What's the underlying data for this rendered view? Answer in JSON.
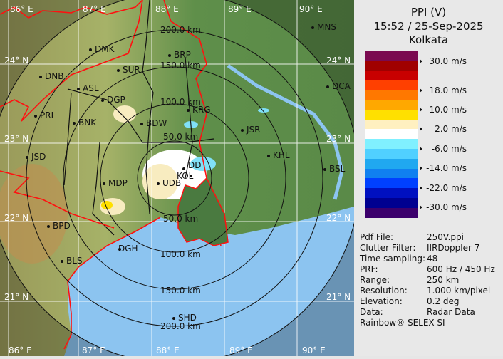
{
  "header": {
    "product": "PPI (V)",
    "datetime": "15:52 / 25-Sep-2025",
    "site": "Kolkata"
  },
  "legend": {
    "unit": "m/s",
    "bands": [
      "#7a0a50",
      "#a00000",
      "#c80000",
      "#ff4000",
      "#ff7800",
      "#ffa800",
      "#ffe000",
      "#fff0c0",
      "#ffffff",
      "#80f0ff",
      "#50d0ff",
      "#20a8f0",
      "#1080f0",
      "#0040ff",
      "#0010c0",
      "#000090",
      "#3c006c"
    ],
    "labels": [
      "30.0 m/s",
      "18.0 m/s",
      "10.0 m/s",
      "2.0 m/s",
      "-6.0 m/s",
      "-14.0 m/s",
      "-22.0 m/s",
      "-30.0 m/s"
    ]
  },
  "info": [
    {
      "key": "Pdf File:",
      "value": "250V.ppi"
    },
    {
      "key": "Clutter Filter:",
      "value": "IIRDoppler 7"
    },
    {
      "key": "Time sampling:",
      "value": "48"
    },
    {
      "key": "PRF:",
      "value": "600 Hz / 450 Hz"
    },
    {
      "key": "Range:",
      "value": "250 km"
    },
    {
      "key": "Resolution:",
      "value": "1.000 km/pixel"
    },
    {
      "key": "Elevation:",
      "value": "0.2 deg"
    },
    {
      "key": "Data:",
      "value": "Radar Data"
    }
  ],
  "credit": "Rainbow® SELEX-SI",
  "map": {
    "lon_labels": [
      "86° E",
      "87° E",
      "88° E",
      "89° E",
      "90° E"
    ],
    "lat_labels": [
      "24° N",
      "23° N",
      "22° N",
      "21° N"
    ],
    "range_labels": [
      "50.0 km",
      "100.0 km",
      "150.0 km",
      "200.0 km"
    ],
    "cities": [
      "DMK",
      "BRP",
      "SUR",
      "DNB",
      "ASL",
      "DGP",
      "PRL",
      "BNK",
      "BDW",
      "KRG",
      "JSR",
      "KHL",
      "BSL",
      "DCA",
      "MNS",
      "JSD",
      "MDP",
      "UDB",
      "DD",
      "KOL",
      "DGH",
      "BPD",
      "BLS",
      "SHD"
    ],
    "colors": {
      "land": "#5e8c4a",
      "sea": "#8cc4f0",
      "border": "#ff1010",
      "range_ring": "#111111",
      "grid": "#ffffff"
    }
  }
}
